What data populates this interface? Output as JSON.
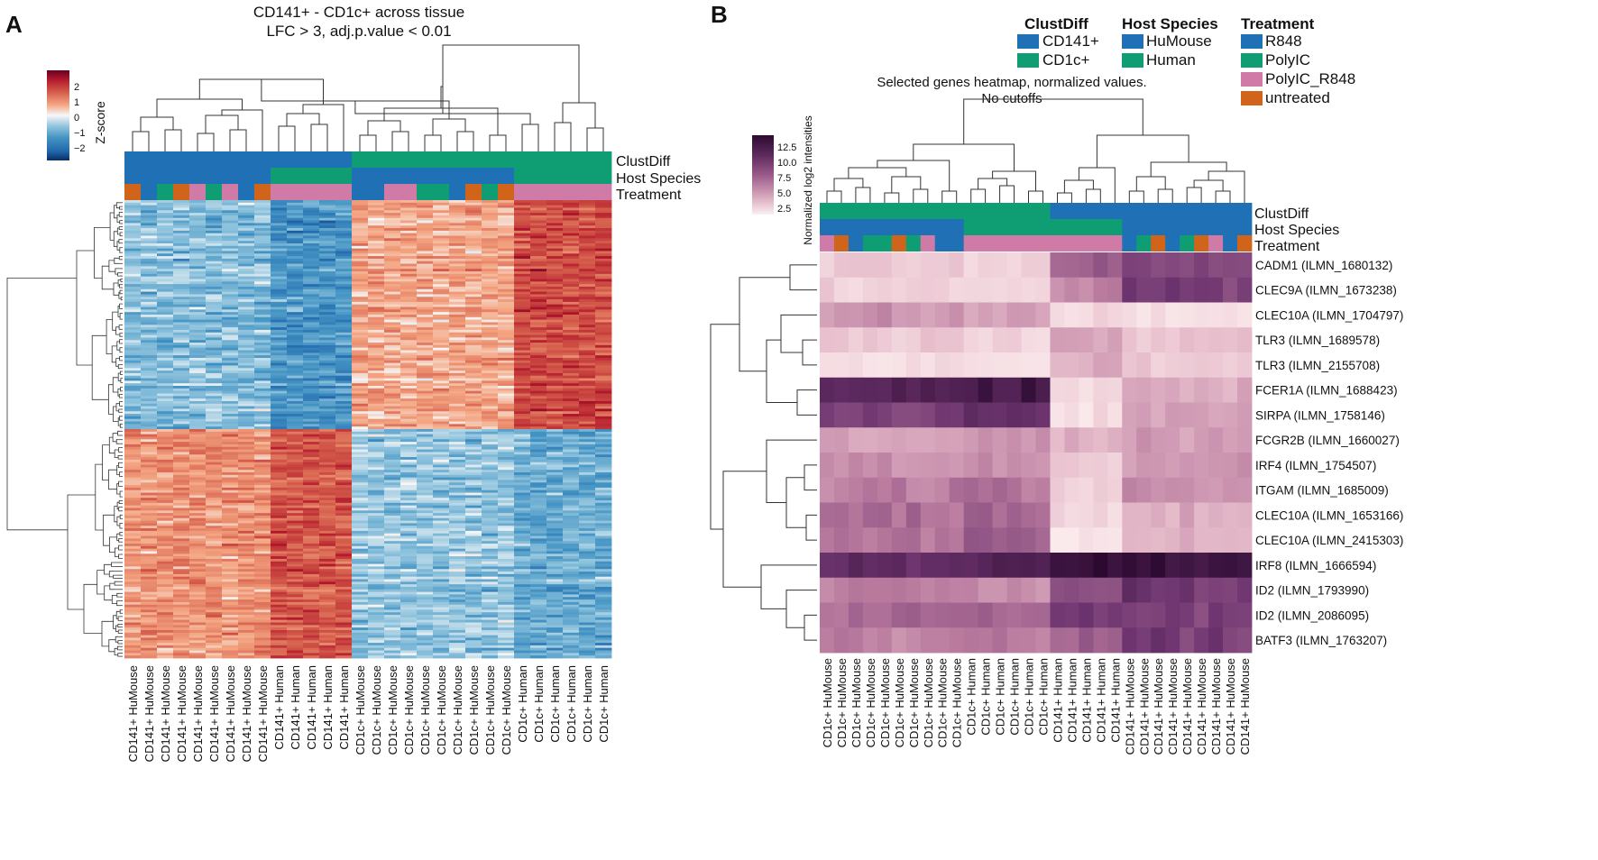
{
  "panels": {
    "A": {
      "letter": "A",
      "title_line1": "CD141+ - CD1c+ across tissue",
      "title_line2": "LFC > 3, adj.p.value < 0.01",
      "colorbar": {
        "label": "Z-score",
        "ticks": [
          "2",
          "1",
          "0",
          "−1",
          "−2"
        ]
      },
      "annotation_rows": [
        "ClustDiff",
        "Host Species",
        "Treatment"
      ],
      "columns": [
        {
          "label": "CD141+ HuMouse",
          "clust": "CD141+",
          "host": "HuMouse",
          "treat": "untreated"
        },
        {
          "label": "CD141+ HuMouse",
          "clust": "CD141+",
          "host": "HuMouse",
          "treat": "R848"
        },
        {
          "label": "CD141+ HuMouse",
          "clust": "CD141+",
          "host": "HuMouse",
          "treat": "PolyIC"
        },
        {
          "label": "CD141+ HuMouse",
          "clust": "CD141+",
          "host": "HuMouse",
          "treat": "untreated"
        },
        {
          "label": "CD141+ HuMouse",
          "clust": "CD141+",
          "host": "HuMouse",
          "treat": "PolyIC_R848"
        },
        {
          "label": "CD141+ HuMouse",
          "clust": "CD141+",
          "host": "HuMouse",
          "treat": "PolyIC"
        },
        {
          "label": "CD141+ HuMouse",
          "clust": "CD141+",
          "host": "HuMouse",
          "treat": "PolyIC_R848"
        },
        {
          "label": "CD141+ HuMouse",
          "clust": "CD141+",
          "host": "HuMouse",
          "treat": "R848"
        },
        {
          "label": "CD141+ HuMouse",
          "clust": "CD141+",
          "host": "HuMouse",
          "treat": "untreated"
        },
        {
          "label": "CD141+ Human",
          "clust": "CD141+",
          "host": "Human",
          "treat": "PolyIC_R848"
        },
        {
          "label": "CD141+ Human",
          "clust": "CD141+",
          "host": "Human",
          "treat": "PolyIC_R848"
        },
        {
          "label": "CD141+ Human",
          "clust": "CD141+",
          "host": "Human",
          "treat": "PolyIC_R848"
        },
        {
          "label": "CD141+ Human",
          "clust": "CD141+",
          "host": "Human",
          "treat": "PolyIC_R848"
        },
        {
          "label": "CD141+ Human",
          "clust": "CD141+",
          "host": "Human",
          "treat": "PolyIC_R848"
        },
        {
          "label": "CD1c+ HuMouse",
          "clust": "CD1c+",
          "host": "HuMouse",
          "treat": "R848"
        },
        {
          "label": "CD1c+ HuMouse",
          "clust": "CD1c+",
          "host": "HuMouse",
          "treat": "R848"
        },
        {
          "label": "CD1c+ HuMouse",
          "clust": "CD1c+",
          "host": "HuMouse",
          "treat": "PolyIC_R848"
        },
        {
          "label": "CD1c+ HuMouse",
          "clust": "CD1c+",
          "host": "HuMouse",
          "treat": "PolyIC_R848"
        },
        {
          "label": "CD1c+ HuMouse",
          "clust": "CD1c+",
          "host": "HuMouse",
          "treat": "PolyIC"
        },
        {
          "label": "CD1c+ HuMouse",
          "clust": "CD1c+",
          "host": "HuMouse",
          "treat": "PolyIC"
        },
        {
          "label": "CD1c+ HuMouse",
          "clust": "CD1c+",
          "host": "HuMouse",
          "treat": "R848"
        },
        {
          "label": "CD1c+ HuMouse",
          "clust": "CD1c+",
          "host": "HuMouse",
          "treat": "untreated"
        },
        {
          "label": "CD1c+ HuMouse",
          "clust": "CD1c+",
          "host": "HuMouse",
          "treat": "PolyIC"
        },
        {
          "label": "CD1c+ HuMouse",
          "clust": "CD1c+",
          "host": "HuMouse",
          "treat": "untreated"
        },
        {
          "label": "CD1c+ Human",
          "clust": "CD1c+",
          "host": "Human",
          "treat": "PolyIC_R848"
        },
        {
          "label": "CD1c+ Human",
          "clust": "CD1c+",
          "host": "Human",
          "treat": "PolyIC_R848"
        },
        {
          "label": "CD1c+ Human",
          "clust": "CD1c+",
          "host": "Human",
          "treat": "PolyIC_R848"
        },
        {
          "label": "CD1c+ Human",
          "clust": "CD1c+",
          "host": "Human",
          "treat": "PolyIC_R848"
        },
        {
          "label": "CD1c+ Human",
          "clust": "CD1c+",
          "host": "Human",
          "treat": "PolyIC_R848"
        },
        {
          "label": "CD1c+ Human",
          "clust": "CD1c+",
          "host": "Human",
          "treat": "PolyIC_R848"
        }
      ]
    },
    "B": {
      "letter": "B",
      "title_line1": "Selected genes heatmap, normalized values.",
      "title_line2": "No cutoffs",
      "colorbar": {
        "label": "Normalized log2 intensities",
        "ticks": [
          "12.5",
          "10.0",
          "7.5",
          "5.0",
          "2.5"
        ]
      },
      "annotation_rows": [
        "ClustDiff",
        "Host Species",
        "Treatment"
      ],
      "genes": [
        "CADM1 (ILMN_1680132)",
        "CLEC9A (ILMN_1673238)",
        "CLEC10A (ILMN_1704797)",
        "TLR3 (ILMN_1689578)",
        "TLR3 (ILMN_2155708)",
        "FCER1A (ILMN_1688423)",
        "SIRPA (ILMN_1758146)",
        "FCGR2B (ILMN_1660027)",
        "IRF4 (ILMN_1754507)",
        "ITGAM (ILMN_1685009)",
        "CLEC10A (ILMN_1653166)",
        "CLEC10A (ILMN_2415303)",
        "IRF8 (ILMN_1666594)",
        "ID2 (ILMN_1793990)",
        "ID2 (ILMN_2086095)",
        "BATF3 (ILMN_1763207)"
      ],
      "columns": [
        {
          "label": "CD1c+ HuMouse",
          "clust": "CD1c+",
          "host": "HuMouse",
          "treat": "PolyIC_R848"
        },
        {
          "label": "CD1c+ HuMouse",
          "clust": "CD1c+",
          "host": "HuMouse",
          "treat": "untreated"
        },
        {
          "label": "CD1c+ HuMouse",
          "clust": "CD1c+",
          "host": "HuMouse",
          "treat": "R848"
        },
        {
          "label": "CD1c+ HuMouse",
          "clust": "CD1c+",
          "host": "HuMouse",
          "treat": "PolyIC"
        },
        {
          "label": "CD1c+ HuMouse",
          "clust": "CD1c+",
          "host": "HuMouse",
          "treat": "PolyIC"
        },
        {
          "label": "CD1c+ HuMouse",
          "clust": "CD1c+",
          "host": "HuMouse",
          "treat": "untreated"
        },
        {
          "label": "CD1c+ HuMouse",
          "clust": "CD1c+",
          "host": "HuMouse",
          "treat": "PolyIC"
        },
        {
          "label": "CD1c+ HuMouse",
          "clust": "CD1c+",
          "host": "HuMouse",
          "treat": "PolyIC_R848"
        },
        {
          "label": "CD1c+ HuMouse",
          "clust": "CD1c+",
          "host": "HuMouse",
          "treat": "R848"
        },
        {
          "label": "CD1c+ HuMouse",
          "clust": "CD1c+",
          "host": "HuMouse",
          "treat": "R848"
        },
        {
          "label": "CD1c+ Human",
          "clust": "CD1c+",
          "host": "Human",
          "treat": "PolyIC_R848"
        },
        {
          "label": "CD1c+ Human",
          "clust": "CD1c+",
          "host": "Human",
          "treat": "PolyIC_R848"
        },
        {
          "label": "CD1c+ Human",
          "clust": "CD1c+",
          "host": "Human",
          "treat": "PolyIC_R848"
        },
        {
          "label": "CD1c+ Human",
          "clust": "CD1c+",
          "host": "Human",
          "treat": "PolyIC_R848"
        },
        {
          "label": "CD1c+ Human",
          "clust": "CD1c+",
          "host": "Human",
          "treat": "PolyIC_R848"
        },
        {
          "label": "CD1c+ Human",
          "clust": "CD1c+",
          "host": "Human",
          "treat": "PolyIC_R848"
        },
        {
          "label": "CD141+ Human",
          "clust": "CD141+",
          "host": "Human",
          "treat": "PolyIC_R848"
        },
        {
          "label": "CD141+ Human",
          "clust": "CD141+",
          "host": "Human",
          "treat": "PolyIC_R848"
        },
        {
          "label": "CD141+ Human",
          "clust": "CD141+",
          "host": "Human",
          "treat": "PolyIC_R848"
        },
        {
          "label": "CD141+ Human",
          "clust": "CD141+",
          "host": "Human",
          "treat": "PolyIC_R848"
        },
        {
          "label": "CD141+ Human",
          "clust": "CD141+",
          "host": "Human",
          "treat": "PolyIC_R848"
        },
        {
          "label": "CD141+ HuMouse",
          "clust": "CD141+",
          "host": "HuMouse",
          "treat": "R848"
        },
        {
          "label": "CD141+ HuMouse",
          "clust": "CD141+",
          "host": "HuMouse",
          "treat": "PolyIC"
        },
        {
          "label": "CD141+ HuMouse",
          "clust": "CD141+",
          "host": "HuMouse",
          "treat": "untreated"
        },
        {
          "label": "CD141+ HuMouse",
          "clust": "CD141+",
          "host": "HuMouse",
          "treat": "R848"
        },
        {
          "label": "CD141+ HuMouse",
          "clust": "CD141+",
          "host": "HuMouse",
          "treat": "PolyIC"
        },
        {
          "label": "CD141+ HuMouse",
          "clust": "CD141+",
          "host": "HuMouse",
          "treat": "untreated"
        },
        {
          "label": "CD141+ HuMouse",
          "clust": "CD141+",
          "host": "HuMouse",
          "treat": "PolyIC_R848"
        },
        {
          "label": "CD141+ HuMouse",
          "clust": "CD141+",
          "host": "HuMouse",
          "treat": "R848"
        },
        {
          "label": "CD141+ HuMouse",
          "clust": "CD141+",
          "host": "HuMouse",
          "treat": "untreated"
        }
      ]
    }
  },
  "legend": {
    "groups": [
      {
        "title": "ClustDiff",
        "items": [
          {
            "label": "CD141+",
            "color": "#1f70b4"
          },
          {
            "label": "CD1c+",
            "color": "#0f9e74"
          }
        ]
      },
      {
        "title": "Host Species",
        "items": [
          {
            "label": "HuMouse",
            "color": "#1f70b4"
          },
          {
            "label": "Human",
            "color": "#0f9e74"
          }
        ]
      },
      {
        "title": "Treatment",
        "items": [
          {
            "label": "R848",
            "color": "#1f70b4"
          },
          {
            "label": "PolyIC",
            "color": "#0f9e74"
          },
          {
            "label": "PolyIC_R848",
            "color": "#d07aa8"
          },
          {
            "label": "untreated",
            "color": "#d0641a"
          }
        ]
      }
    ]
  },
  "colors": {
    "CD141+": "#1f70b4",
    "CD1c+": "#0f9e74",
    "HuMouse": "#1f70b4",
    "Human": "#0f9e74",
    "R848": "#1f70b4",
    "PolyIC": "#0f9e74",
    "PolyIC_R848": "#d07aa8",
    "untreated": "#d0641a"
  },
  "chart_data": [
    {
      "type": "heatmap",
      "title": "CD141+ - CD1c+ across tissue / LFC > 3, adj.p.value < 0.01",
      "value_label": "Z-score",
      "value_range": [
        -2.5,
        2.5
      ],
      "colormap": "RdBu_r",
      "n_rows": 180,
      "n_columns": 30,
      "row_block_pattern": {
        "description": "Approximate mean Z-score per column group for two gene clusters (rows are individual genes, unlabeled)",
        "column_groups": [
          "CD141+ HuMouse",
          "CD141+ Human",
          "CD1c+ HuMouse",
          "CD1c+ Human"
        ],
        "cluster_upper_rows_0_to_90": [
          -0.7,
          -1.2,
          0.6,
          1.5
        ],
        "cluster_lower_rows_90_to_180": [
          0.8,
          1.4,
          -0.6,
          -0.9
        ]
      }
    },
    {
      "type": "heatmap",
      "title": "Selected genes heatmap, normalized values. / No cutoffs",
      "value_label": "Normalized log2 intensities",
      "value_range": [
        1.5,
        14
      ],
      "colormap": "pink-purple",
      "rows": [
        "CADM1 (ILMN_1680132)",
        "CLEC9A (ILMN_1673238)",
        "CLEC10A (ILMN_1704797)",
        "TLR3 (ILMN_1689578)",
        "TLR3 (ILMN_2155708)",
        "FCER1A (ILMN_1688423)",
        "SIRPA (ILMN_1758146)",
        "FCGR2B (ILMN_1660027)",
        "IRF4 (ILMN_1754507)",
        "ITGAM (ILMN_1685009)",
        "CLEC10A (ILMN_1653166)",
        "CLEC10A (ILMN_2415303)",
        "IRF8 (ILMN_1666594)",
        "ID2 (ILMN_1793990)",
        "ID2 (ILMN_2086095)",
        "BATF3 (ILMN_1763207)"
      ],
      "column_groups": [
        "CD1c+ HuMouse",
        "CD1c+ Human",
        "CD141+ Human",
        "CD141+ HuMouse"
      ],
      "group_means": [
        [
          4.0,
          3.5,
          9.0,
          10.0
        ],
        [
          3.5,
          3.0,
          7.0,
          10.5
        ],
        [
          6.5,
          6.0,
          3.0,
          2.5
        ],
        [
          4.0,
          3.5,
          6.0,
          4.5
        ],
        [
          3.0,
          2.5,
          5.5,
          4.0
        ],
        [
          12.0,
          13.0,
          3.0,
          5.5
        ],
        [
          10.5,
          11.5,
          2.5,
          6.0
        ],
        [
          6.0,
          6.5,
          5.0,
          6.0
        ],
        [
          6.5,
          7.0,
          4.0,
          6.5
        ],
        [
          7.5,
          8.0,
          3.5,
          7.0
        ],
        [
          8.0,
          8.5,
          3.0,
          5.5
        ],
        [
          8.0,
          9.0,
          2.5,
          5.0
        ],
        [
          11.5,
          12.0,
          13.5,
          13.5
        ],
        [
          7.5,
          7.0,
          9.5,
          11.0
        ],
        [
          8.5,
          8.5,
          11.0,
          10.5
        ],
        [
          7.5,
          8.0,
          9.0,
          10.5
        ]
      ]
    }
  ]
}
